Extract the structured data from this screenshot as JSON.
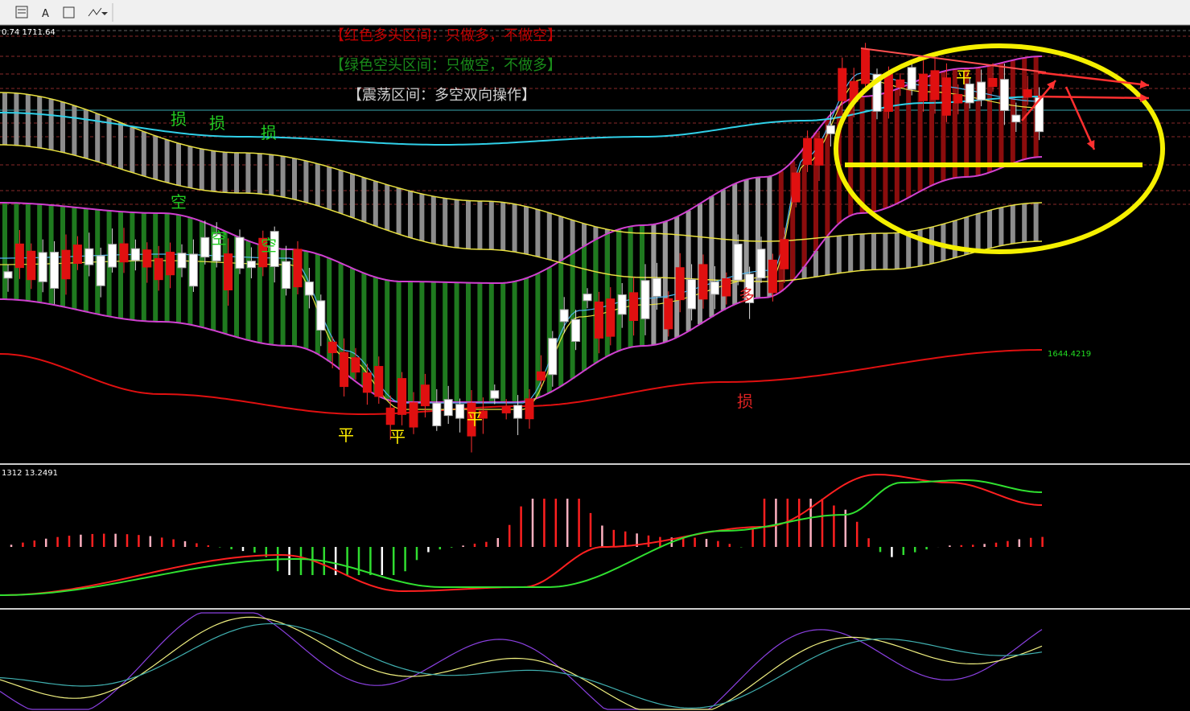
{
  "toolbar": {
    "font_button": "A"
  },
  "main": {
    "header": "0.74 1711.64",
    "legend": [
      "【红色多头区间：只做多，不做空】",
      "【绿色空头区间：只做空，不做多】",
      "【震荡区间：多空双向操作】"
    ],
    "annotations": [
      "损",
      "损",
      "损",
      "空",
      "空",
      "空",
      "平",
      "平",
      "平",
      "平",
      "多",
      "损"
    ],
    "price_label": "1644.4219"
  },
  "macd": {
    "header": "1312 13.2491"
  }
}
